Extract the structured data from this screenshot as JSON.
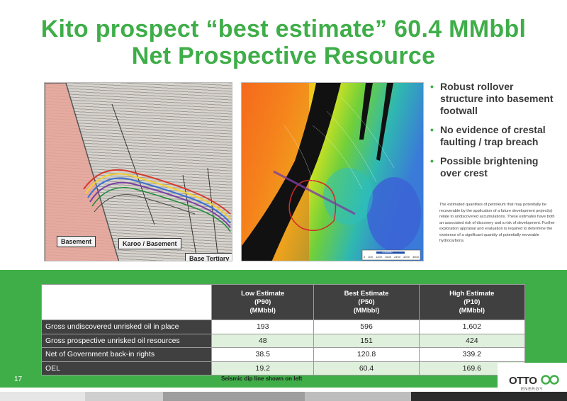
{
  "title": {
    "line1": "Kito prospect “best estimate” 60.4 MMbbl",
    "line2": "Net Prospective Resource"
  },
  "seismic": {
    "labels": [
      "Basement",
      "Karoo / Basement",
      "Base Tertiary"
    ]
  },
  "map": {
    "scale_label": "1:50000",
    "scale_ticks": [
      "0",
      "400",
      "1200",
      "1600",
      "2400",
      "3200",
      "3600"
    ]
  },
  "bullets": [
    "Robust rollover structure into basement footwall",
    "No evidence of crestal faulting / trap breach",
    "Possible brightening over crest"
  ],
  "note": "The estimated quantities of petroleum that may potentially be recoverable by the application of a future development project(s) relate to undiscovered accumulations. These estimates have both an associated risk of discovery and a risk of development. Further exploration appraisal and evaluation is required to determine the existence of a significant quantity of potentially moveable hydrocarbons.",
  "table": {
    "headers": [
      {
        "l1": "Low Estimate",
        "l2": "(P90)",
        "l3": "(MMbbl)"
      },
      {
        "l1": "Best Estimate",
        "l2": "(P50)",
        "l3": "(MMbbl)"
      },
      {
        "l1": "High Estimate",
        "l2": "(P10)",
        "l3": "(MMbbl)"
      }
    ],
    "rows": [
      {
        "label": "Gross undiscovered unrisked oil in place",
        "values": [
          "193",
          "596",
          "1,602"
        ]
      },
      {
        "label": "Gross prospective unrisked oil resources",
        "values": [
          "48",
          "151",
          "424"
        ]
      },
      {
        "label": "Net of Government back-in rights",
        "values": [
          "38.5",
          "120.8",
          "339.2"
        ]
      },
      {
        "label": "OEL",
        "values": [
          "19.2",
          "60.4",
          "169.6"
        ]
      }
    ]
  },
  "caption": "Seismic dip line shown on left",
  "page_number": "17",
  "logo": {
    "word": "OTTO",
    "sub": "ENERGY"
  },
  "colors": {
    "brand_green": "#3fae49",
    "dark_cell": "#404040",
    "light_row": "#dff0dc"
  }
}
